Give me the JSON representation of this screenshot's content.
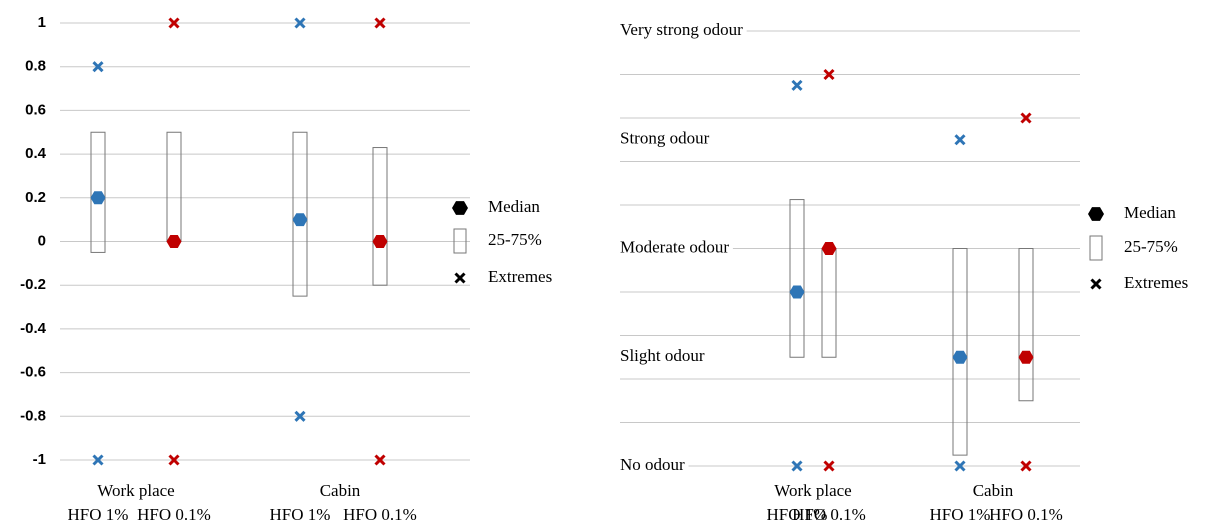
{
  "chart_data": [
    {
      "type": "box",
      "groups": [
        "Work place",
        "Cabin"
      ],
      "categories": [
        "HFO 1%",
        "HFO 0.1%",
        "HFO 1%",
        "HFO 0.1%"
      ],
      "colors": [
        "#2e75b6",
        "#c00000",
        "#2e75b6",
        "#c00000"
      ],
      "median": [
        0.2,
        0,
        0.1,
        0
      ],
      "q1": [
        -0.05,
        0,
        -0.25,
        -0.2
      ],
      "q3": [
        0.5,
        0.5,
        0.5,
        0.43
      ],
      "min": [
        -1,
        -1,
        -0.8,
        -1
      ],
      "max": [
        0.8,
        1,
        1,
        1
      ],
      "ylim": [
        -1,
        1
      ],
      "yticks": [
        -1,
        -0.8,
        -0.6,
        -0.4,
        -0.2,
        0,
        0.2,
        0.4,
        0.6,
        0.8,
        1
      ],
      "grid": true,
      "legend": [
        "Median",
        "25-75%",
        "Extremes"
      ]
    },
    {
      "type": "box",
      "groups": [
        "Work place",
        "Cabin"
      ],
      "categories": [
        "HFO 1%",
        "HFO 0.1%",
        "HFO 1%",
        "HFO 0.1%"
      ],
      "colors": [
        "#2e75b6",
        "#c00000",
        "#2e75b6",
        "#c00000"
      ],
      "median": [
        1.6,
        2.0,
        1.0,
        1.0
      ],
      "q1": [
        1.0,
        1.0,
        0.1,
        0.6
      ],
      "q3": [
        2.45,
        2.0,
        2.0,
        2.0
      ],
      "min": [
        0,
        0,
        0,
        0
      ],
      "max": [
        3.5,
        3.6,
        3.0,
        3.2
      ],
      "ylim": [
        0,
        4
      ],
      "yticks": [
        {
          "value": 0,
          "label": "No odour"
        },
        {
          "value": 1,
          "label": "Slight odour"
        },
        {
          "value": 2,
          "label": "Moderate odour"
        },
        {
          "value": 3,
          "label": "Strong odour"
        },
        {
          "value": 4,
          "label": "Very strong odour"
        }
      ],
      "ygrid": [
        0,
        0.4,
        0.8,
        1.2,
        1.6,
        2,
        2.4,
        2.8,
        3.2,
        3.6,
        4
      ],
      "grid": true,
      "legend": [
        "Median",
        "25-75%",
        "Extremes"
      ]
    }
  ]
}
